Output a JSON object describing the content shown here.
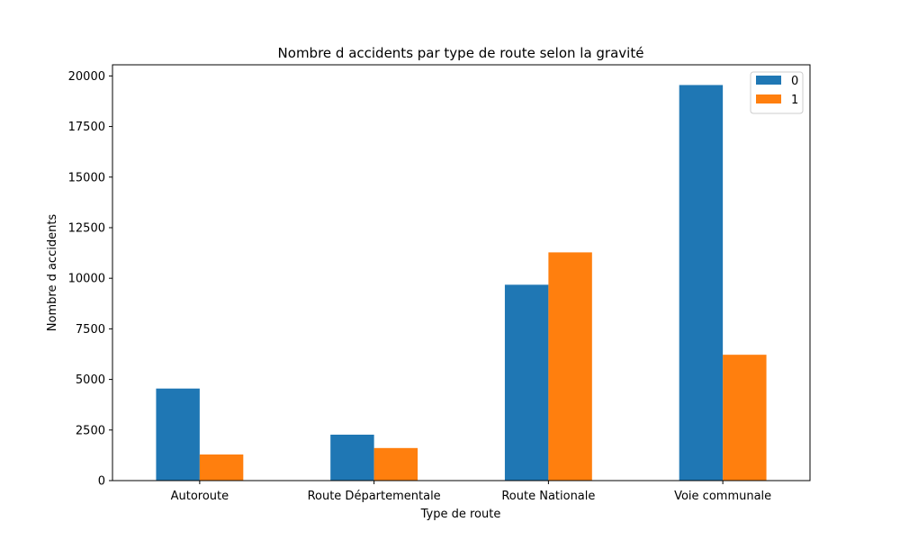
{
  "chart_data": {
    "type": "bar",
    "title": "Nombre d accidents par type de route selon la gravité",
    "xlabel": "Type de route",
    "ylabel": "Nombre d accidents",
    "categories": [
      "Autoroute",
      "Route Départementale",
      "Route Nationale",
      "Voie communale"
    ],
    "series": [
      {
        "name": "0",
        "color": "#1f77b4",
        "values": [
          4550,
          2270,
          9680,
          19550
        ]
      },
      {
        "name": "1",
        "color": "#ff7f0e",
        "values": [
          1290,
          1610,
          11280,
          6220
        ]
      }
    ],
    "ylim": [
      0,
      20550
    ],
    "yticks": [
      0,
      2500,
      5000,
      7500,
      10000,
      12500,
      15000,
      17500,
      20000
    ],
    "grid": false,
    "legend_position": "top-right"
  }
}
